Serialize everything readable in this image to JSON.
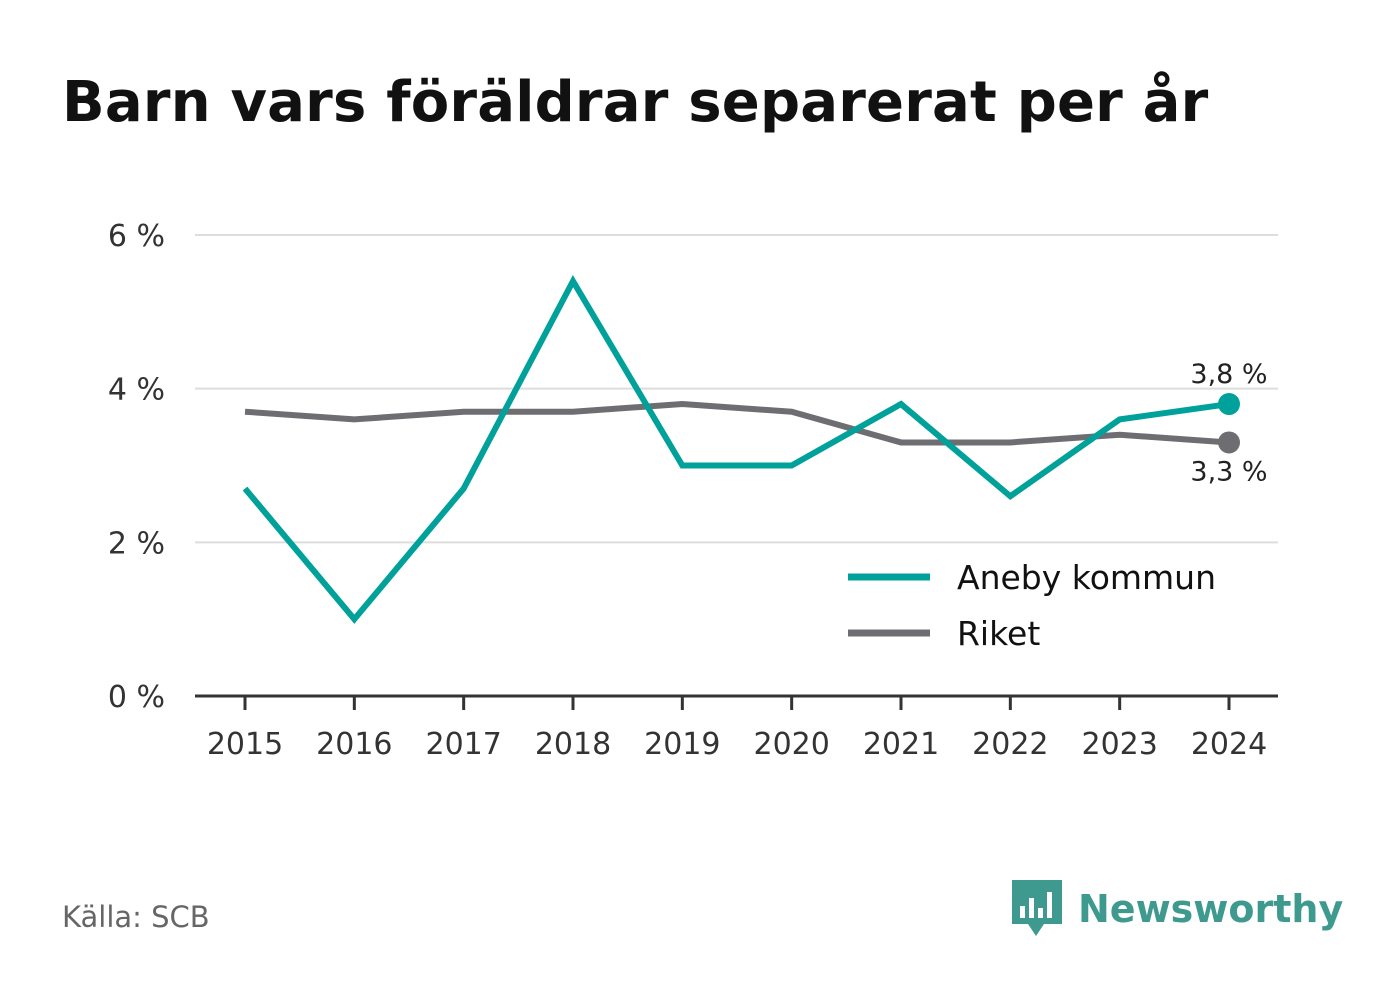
{
  "chart_data": {
    "type": "line",
    "title": "Barn vars föräldrar separerat per år",
    "xlabel": "",
    "ylabel": "",
    "x": [
      "2015",
      "2016",
      "2017",
      "2018",
      "2019",
      "2020",
      "2021",
      "2022",
      "2023",
      "2024"
    ],
    "y_ticks": [
      "0 %",
      "2 %",
      "4 %",
      "6 %"
    ],
    "ylim": [
      0,
      6
    ],
    "grid": true,
    "legend_position": "bottom-right",
    "series": [
      {
        "name": "Aneby kommun",
        "color": "#00a19a",
        "values": [
          2.7,
          1.0,
          2.7,
          5.4,
          3.0,
          3.0,
          3.8,
          2.6,
          3.6,
          3.8
        ],
        "end_label": "3,8 %"
      },
      {
        "name": "Riket",
        "color": "#6e6d72",
        "values": [
          3.7,
          3.6,
          3.7,
          3.7,
          3.8,
          3.7,
          3.3,
          3.3,
          3.4,
          3.3
        ],
        "end_label": "3,3 %"
      }
    ]
  },
  "footer": {
    "source": "Källa: SCB",
    "brand": "Newsworthy",
    "brand_color": "#3e9a8e",
    "brand_icon": "bar-chart-speech-bubble-icon"
  }
}
